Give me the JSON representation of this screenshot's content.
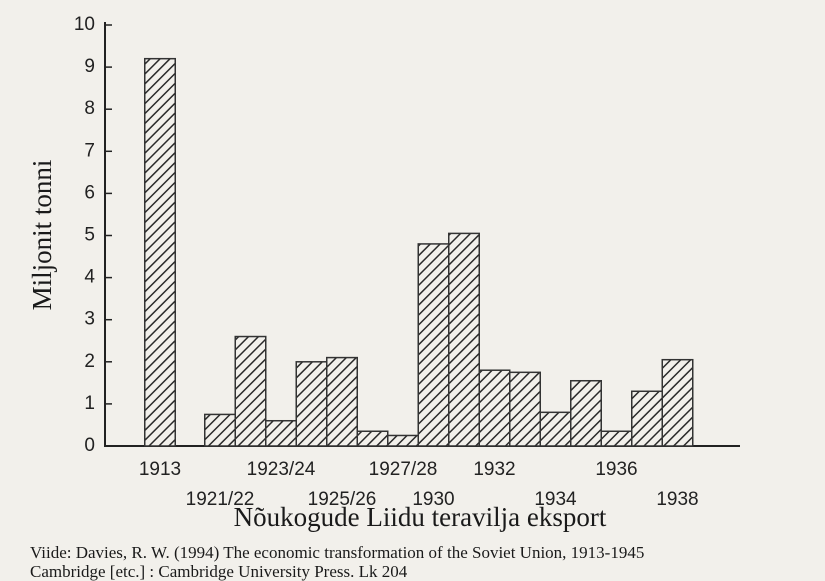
{
  "chart_data": {
    "type": "bar",
    "title": "Nõukogude Liidu teravilja eksport",
    "y_label": "Miljonit tonni",
    "source": [
      "Viide: Davies, R. W. (1994) The economic transformation of the Soviet Union, 1913-1945",
      "Cambridge [etc.] : Cambridge University Press. Lk 204"
    ],
    "categories": [
      "1913",
      "1921/22",
      null,
      "1923/24",
      null,
      "1925/26",
      null,
      "1927/28",
      "1930",
      null,
      "1932",
      null,
      "1934",
      null,
      "1936",
      null,
      "1938"
    ],
    "values": [
      9.2,
      0.75,
      2.6,
      0.6,
      2.0,
      2.1,
      0.35,
      0.25,
      4.8,
      5.05,
      1.8,
      1.75,
      0.8,
      1.55,
      0.35,
      1.3,
      2.05
    ],
    "color": "#333333",
    "ylim": [
      0,
      10
    ],
    "yticks": [
      0,
      1,
      2,
      3,
      4,
      5,
      6,
      7,
      8,
      9,
      10
    ]
  }
}
